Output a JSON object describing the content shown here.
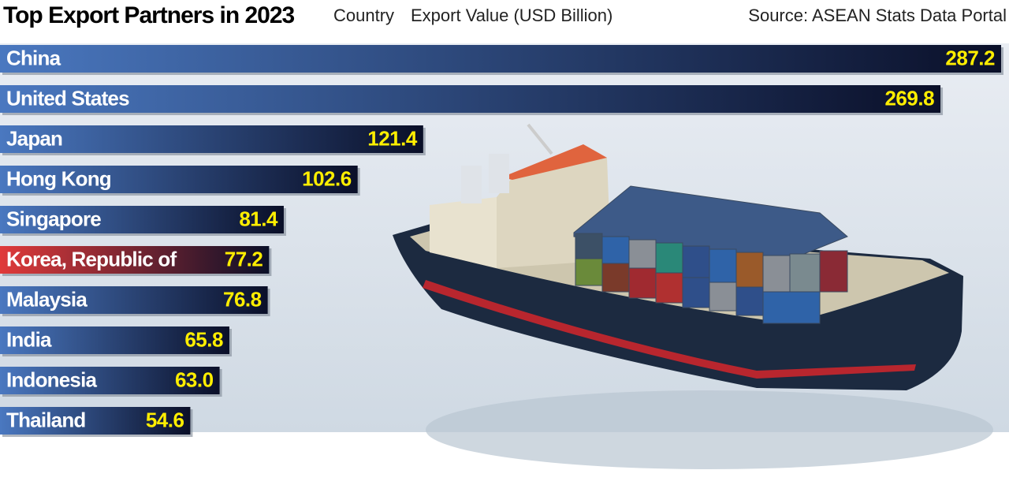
{
  "chart_data": {
    "type": "bar",
    "orientation": "horizontal",
    "title": "Top Export Partners in 2023",
    "category_label": "Country",
    "value_label": "Export Value (USD Billion)",
    "source": "Source: ASEAN Stats Data Portal",
    "categories": [
      "China",
      "United States",
      "Japan",
      "Hong Kong",
      "Singapore",
      "Korea, Republic of",
      "Malaysia",
      "India",
      "Indonesia",
      "Thailand"
    ],
    "values": [
      287.2,
      269.8,
      121.4,
      102.6,
      81.4,
      77.2,
      76.8,
      65.8,
      63.0,
      54.6
    ],
    "value_labels": [
      "287.2",
      "269.8",
      "121.4",
      "102.6",
      "81.4",
      "77.2",
      "76.8",
      "65.8",
      "63.0",
      "54.6"
    ],
    "colors": [
      "#4a78c0",
      "#4a78c0",
      "#4a78c0",
      "#4a78c0",
      "#4a78c0",
      "#e03a3a",
      "#4a78c0",
      "#4a78c0",
      "#4a78c0",
      "#4a78c0"
    ]
  }
}
